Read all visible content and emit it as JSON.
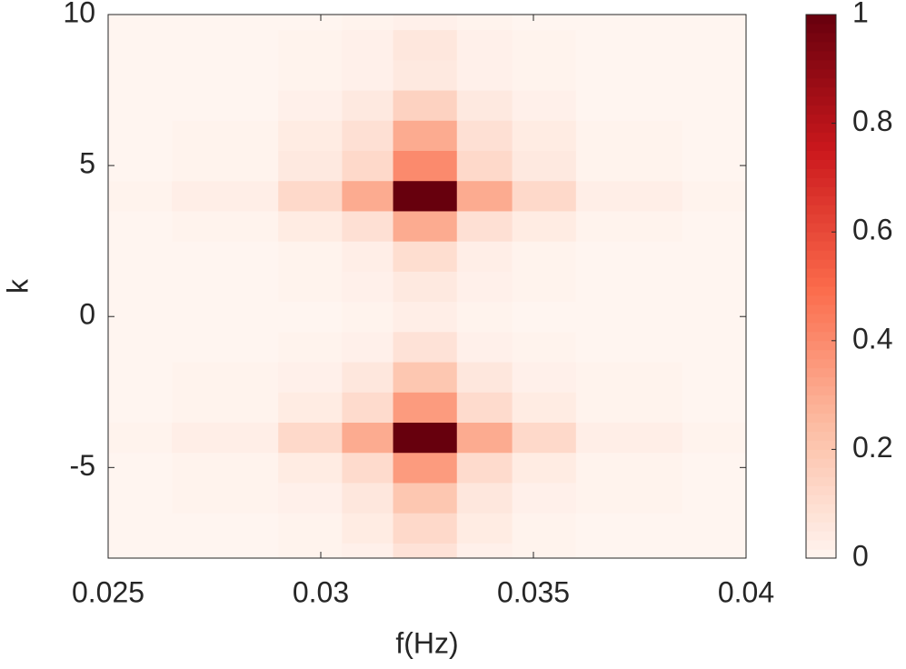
{
  "chart_data": {
    "type": "heatmap",
    "xlabel": "f(Hz)",
    "ylabel": "k",
    "x": [
      0.025,
      0.028,
      0.03,
      0.031,
      0.0324,
      0.034,
      0.035,
      0.037,
      0.04
    ],
    "y": [
      -8,
      -7,
      -6,
      -5,
      -4,
      -3,
      -2,
      -1,
      0,
      1,
      2,
      3,
      4,
      5,
      6,
      7,
      8,
      9,
      10
    ],
    "z": [
      [
        0,
        0,
        0.01,
        0.02,
        0.08,
        0.02,
        0.01,
        0,
        0
      ],
      [
        0,
        0,
        0.01,
        0.04,
        0.12,
        0.04,
        0.01,
        0,
        0
      ],
      [
        0,
        0.01,
        0.02,
        0.06,
        0.2,
        0.06,
        0.02,
        0.01,
        0
      ],
      [
        0,
        0.01,
        0.04,
        0.11,
        0.35,
        0.11,
        0.04,
        0.01,
        0
      ],
      [
        0.01,
        0.03,
        0.12,
        0.3,
        1,
        0.3,
        0.12,
        0.03,
        0.01
      ],
      [
        0,
        0.01,
        0.04,
        0.11,
        0.35,
        0.11,
        0.04,
        0.01,
        0
      ],
      [
        0,
        0.01,
        0.02,
        0.06,
        0.2,
        0.06,
        0.02,
        0.01,
        0
      ],
      [
        0,
        0,
        0.01,
        0.02,
        0.08,
        0.02,
        0.01,
        0,
        0
      ],
      [
        0,
        0,
        0,
        0.01,
        0.03,
        0.01,
        0,
        0,
        0
      ],
      [
        0,
        0,
        0.01,
        0.02,
        0.05,
        0.02,
        0.01,
        0,
        0
      ],
      [
        0,
        0,
        0.01,
        0.03,
        0.1,
        0.03,
        0.01,
        0,
        0
      ],
      [
        0,
        0.01,
        0.04,
        0.09,
        0.3,
        0.09,
        0.04,
        0.01,
        0
      ],
      [
        0.01,
        0.03,
        0.12,
        0.3,
        1,
        0.3,
        0.12,
        0.03,
        0.01
      ],
      [
        0,
        0.01,
        0.05,
        0.12,
        0.4,
        0.12,
        0.05,
        0.01,
        0
      ],
      [
        0,
        0.01,
        0.04,
        0.09,
        0.3,
        0.09,
        0.04,
        0.01,
        0
      ],
      [
        0,
        0,
        0.02,
        0.05,
        0.15,
        0.05,
        0.02,
        0,
        0
      ],
      [
        0,
        0,
        0.01,
        0.02,
        0.05,
        0.02,
        0.01,
        0,
        0
      ],
      [
        0,
        0,
        0.01,
        0.02,
        0.06,
        0.02,
        0.01,
        0,
        0
      ],
      [
        0,
        0,
        0,
        0.01,
        0.02,
        0.01,
        0,
        0,
        0
      ]
    ],
    "xlim": [
      0.025,
      0.04
    ],
    "xticks": [
      0.025,
      0.03,
      0.035,
      0.04
    ],
    "ylim": [
      -8,
      10
    ],
    "yticks": [
      -5,
      0,
      5,
      10
    ],
    "clim": [
      0,
      1
    ],
    "cticks": [
      0,
      0.2,
      0.4,
      0.6,
      0.8,
      1
    ],
    "colormap": [
      "#fff5f0",
      "#fcbba1",
      "#fb6a4a",
      "#cb181d",
      "#67000d"
    ]
  }
}
